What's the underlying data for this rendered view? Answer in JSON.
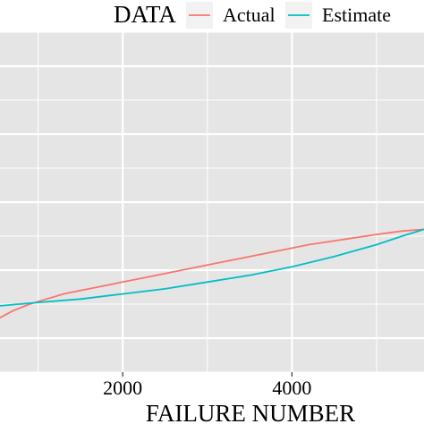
{
  "chart_data": {
    "type": "line",
    "xlabel": "FAILURE NUMBER",
    "ylabel": "",
    "xlim": [
      550,
      5560
    ],
    "ylim": [
      0,
      1
    ],
    "x_ticks": [
      2000,
      4000
    ],
    "x_tick_labels": [
      "2000",
      "4000"
    ],
    "legend": {
      "title": "DATA",
      "position": "top"
    },
    "grid": true,
    "panel_background": "#e5e5e5",
    "series": [
      {
        "name": "Actual",
        "color": "#f8766d",
        "x": [
          550,
          700,
          900,
          1100,
          1300,
          1500,
          1800,
          2000,
          2300,
          2600,
          3000,
          3400,
          3800,
          4200,
          4600,
          5000,
          5300,
          5560
        ],
        "y": [
          0.16,
          0.18,
          0.2,
          0.215,
          0.23,
          0.24,
          0.255,
          0.265,
          0.28,
          0.295,
          0.315,
          0.335,
          0.355,
          0.375,
          0.39,
          0.405,
          0.415,
          0.42
        ]
      },
      {
        "name": "Estimate",
        "color": "#00bfc4",
        "x": [
          550,
          1000,
          1500,
          2000,
          2500,
          3000,
          3500,
          4000,
          4500,
          5000,
          5300,
          5560
        ],
        "y": [
          0.195,
          0.205,
          0.215,
          0.23,
          0.245,
          0.265,
          0.285,
          0.31,
          0.34,
          0.375,
          0.4,
          0.42
        ]
      }
    ]
  }
}
